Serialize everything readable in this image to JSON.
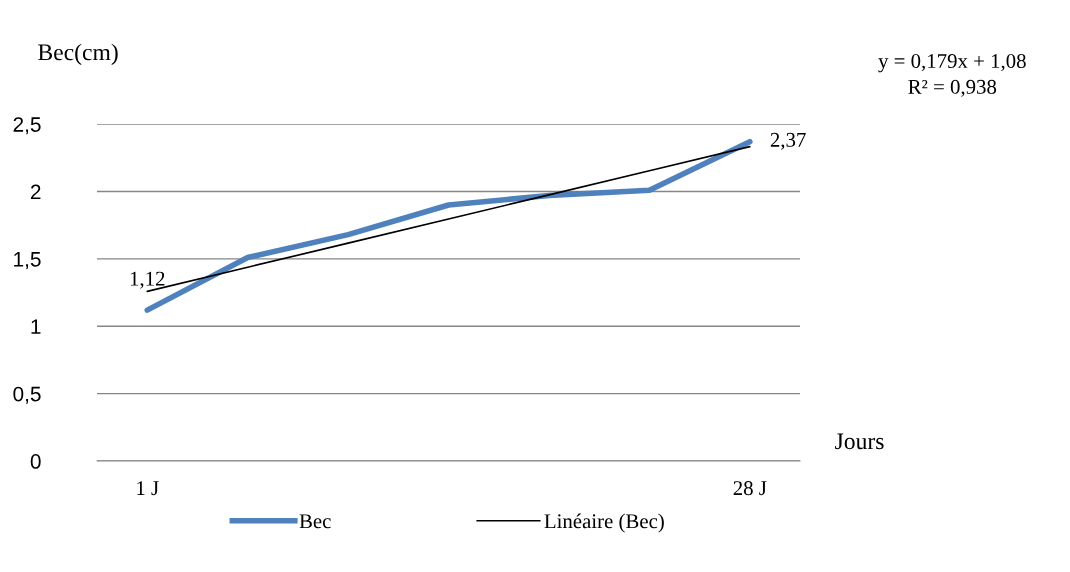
{
  "chart_data": {
    "type": "line",
    "ylabel": "Bec(cm)",
    "xlabel": "Jours",
    "categories": [
      "1 J",
      null,
      null,
      null,
      null,
      null,
      "28 J"
    ],
    "series": [
      {
        "name": "Bec",
        "color": "#4f81bd",
        "values": [
          1.12,
          1.51,
          1.68,
          1.9,
          1.97,
          2.01,
          2.37
        ],
        "value_labels": [
          "1,12",
          null,
          null,
          null,
          null,
          null,
          "2,37"
        ]
      },
      {
        "name": "Linéaire (Bec)",
        "color": "#000000",
        "values": [
          1.259,
          1.438,
          1.617,
          1.796,
          1.975,
          2.154,
          2.333
        ]
      }
    ],
    "ylim": [
      0,
      2.5
    ],
    "yticks": [
      0,
      {
        "value": 0.5,
        "label": "0,5"
      },
      1,
      {
        "value": 1.5,
        "label": "1,5"
      },
      2,
      {
        "value": 2.5,
        "label": "2,5"
      }
    ],
    "grid": "y",
    "legend": "bottom",
    "annotations": [
      "y = 0,179x + 1,08",
      "R² = 0,938"
    ]
  }
}
